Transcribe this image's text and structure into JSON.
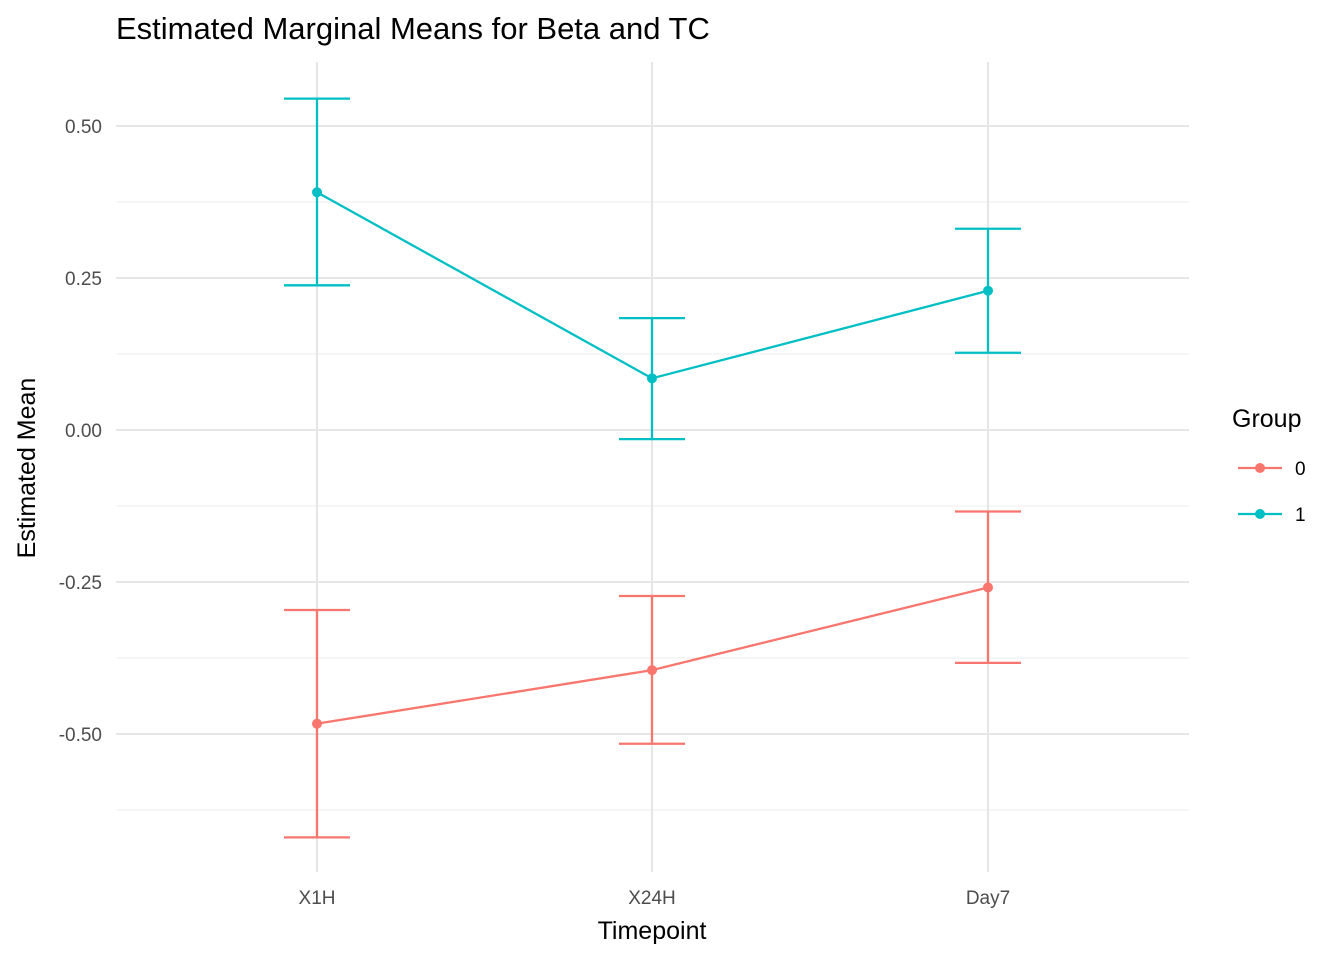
{
  "chart_data": {
    "type": "line",
    "title": "Estimated Marginal Means for Beta and TC",
    "xlabel": "Timepoint",
    "ylabel": "Estimated Mean",
    "categories": [
      "X1H",
      "X24H",
      "Day7"
    ],
    "ylim": [
      -0.73,
      0.6
    ],
    "yticks": [
      0.5,
      0.25,
      0.0,
      -0.25,
      -0.5
    ],
    "ytick_labels": [
      "0.50",
      "0.25",
      "0.00",
      "-0.25",
      "-0.50"
    ],
    "grid": true,
    "legend": {
      "title": "Group",
      "placement": "right"
    },
    "error_bars": true,
    "series": [
      {
        "name": "0",
        "color": "#F8766D",
        "values": [
          -0.483,
          -0.395,
          -0.259
        ],
        "lower": [
          -0.67,
          -0.516,
          -0.383
        ],
        "upper": [
          -0.296,
          -0.273,
          -0.134
        ]
      },
      {
        "name": "1",
        "color": "#00BFC4",
        "values": [
          0.391,
          0.085,
          0.229
        ],
        "lower": [
          0.238,
          -0.015,
          0.127
        ],
        "upper": [
          0.545,
          0.184,
          0.331
        ]
      }
    ]
  }
}
